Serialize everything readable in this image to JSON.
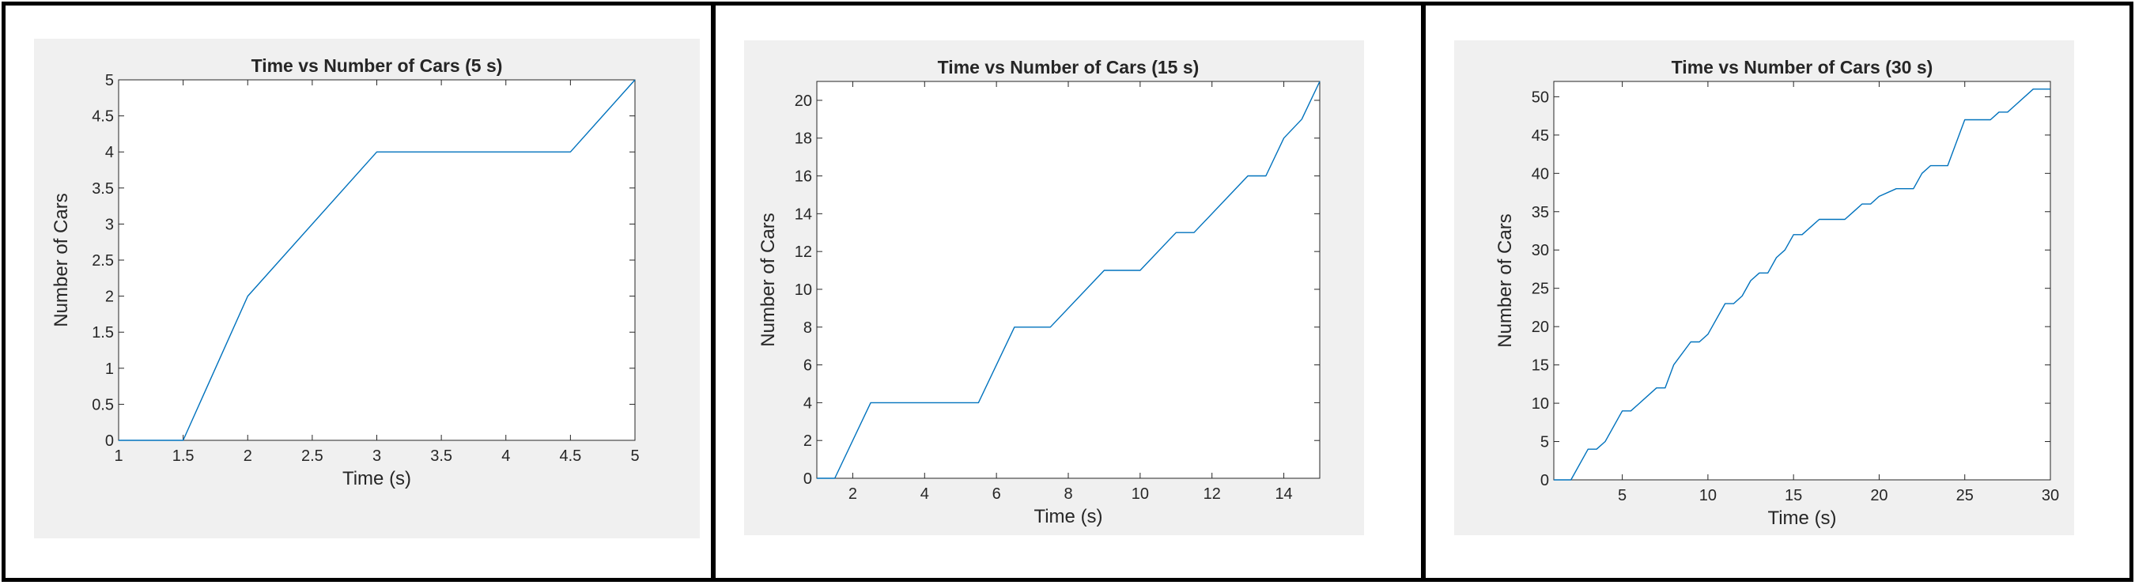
{
  "chart_data": [
    {
      "type": "line",
      "title": "Time vs Number of Cars (5 s)",
      "xlabel": "Time (s)",
      "ylabel": "Number of Cars",
      "xlim": [
        1,
        5
      ],
      "ylim": [
        0,
        5
      ],
      "xticks": [
        "1",
        "1.5",
        "2",
        "2.5",
        "3",
        "3.5",
        "4",
        "4.5",
        "5"
      ],
      "yticks": [
        "0",
        "0.5",
        "1",
        "1.5",
        "2",
        "2.5",
        "3",
        "3.5",
        "4",
        "4.5",
        "5"
      ],
      "grid": false,
      "line_color": "#0072bd",
      "series": [
        {
          "x": [
            1,
            1.5,
            2,
            3,
            4.5,
            5
          ],
          "y": [
            0,
            0,
            2,
            4,
            4,
            5
          ]
        }
      ]
    },
    {
      "type": "line",
      "title": "Time vs Number of Cars (15 s)",
      "xlabel": "Time (s)",
      "ylabel": "Number of Cars",
      "xlim": [
        1,
        15
      ],
      "ylim": [
        0,
        21
      ],
      "xticks": [
        "2",
        "4",
        "6",
        "8",
        "10",
        "12",
        "14"
      ],
      "yticks": [
        "0",
        "2",
        "4",
        "6",
        "8",
        "10",
        "12",
        "14",
        "16",
        "18",
        "20"
      ],
      "grid": false,
      "line_color": "#0072bd",
      "series": [
        {
          "x": [
            1,
            1.5,
            2.5,
            5.5,
            6.5,
            7.5,
            9,
            10,
            11,
            11.5,
            13,
            13.5,
            14,
            14.5,
            15
          ],
          "y": [
            0,
            0,
            4,
            4,
            8,
            8,
            11,
            11,
            13,
            13,
            16,
            16,
            18,
            19,
            21
          ]
        }
      ]
    },
    {
      "type": "line",
      "title": "Time vs Number of Cars (30 s)",
      "xlabel": "Time (s)",
      "ylabel": "Number of Cars",
      "xlim": [
        1,
        30
      ],
      "ylim": [
        0,
        52
      ],
      "xticks": [
        "5",
        "10",
        "15",
        "20",
        "25",
        "30"
      ],
      "yticks": [
        "0",
        "5",
        "10",
        "15",
        "20",
        "25",
        "30",
        "35",
        "40",
        "45",
        "50"
      ],
      "grid": false,
      "line_color": "#0072bd",
      "series": [
        {
          "x": [
            1,
            2,
            3,
            3.5,
            4,
            5,
            5.5,
            6,
            7,
            7.5,
            8,
            9,
            9.5,
            10,
            11,
            11.5,
            12,
            12.5,
            13,
            13.5,
            14,
            14.5,
            15,
            15.5,
            16,
            16.5,
            18,
            18.5,
            19,
            19.5,
            20,
            21,
            21.5,
            22,
            22.5,
            23,
            24,
            25,
            26,
            26.5,
            27,
            27.5,
            28,
            29,
            30
          ],
          "y": [
            0,
            0,
            4,
            4,
            5,
            9,
            9,
            10,
            12,
            12,
            15,
            18,
            18,
            19,
            23,
            23,
            24,
            26,
            27,
            27,
            29,
            30,
            32,
            32,
            33,
            34,
            34,
            35,
            36,
            36,
            37,
            38,
            38,
            38,
            40,
            41,
            41,
            47,
            47,
            47,
            48,
            48,
            49,
            51,
            51
          ]
        }
      ]
    }
  ]
}
